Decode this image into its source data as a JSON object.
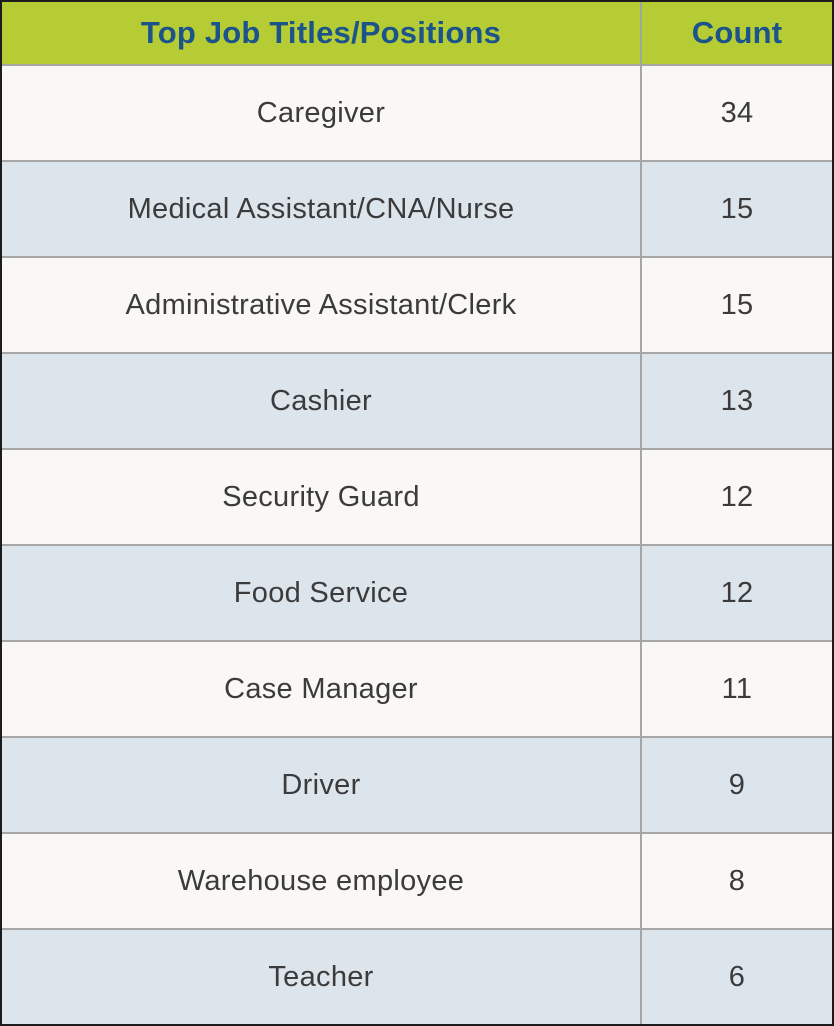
{
  "table": {
    "title_header": "Top Job Titles/Positions",
    "count_header": "Count",
    "rows": [
      {
        "title": "Caregiver",
        "count": "34"
      },
      {
        "title": "Medical Assistant/CNA/Nurse",
        "count": "15"
      },
      {
        "title": "Administrative Assistant/Clerk",
        "count": "15"
      },
      {
        "title": "Cashier",
        "count": "13"
      },
      {
        "title": "Security Guard",
        "count": "12"
      },
      {
        "title": "Food Service",
        "count": "12"
      },
      {
        "title": "Case Manager",
        "count": "11"
      },
      {
        "title": "Driver",
        "count": "9"
      },
      {
        "title": "Warehouse employee",
        "count": "8"
      },
      {
        "title": "Teacher",
        "count": "6"
      }
    ]
  },
  "colors": {
    "header_background": "#b5cc34",
    "header_text": "#1b538b",
    "row_odd_background": "#faf8f4",
    "row_even_background": "#dde5ec",
    "row_text": "#3b3b3b",
    "divider": "#a6a6a6",
    "outer_border": "#1c1c1c"
  },
  "chart_data": {
    "type": "table",
    "title": "Top Job Titles/Positions",
    "columns": [
      "Top Job Titles/Positions",
      "Count"
    ],
    "categories": [
      "Caregiver",
      "Medical Assistant/CNA/Nurse",
      "Administrative Assistant/Clerk",
      "Cashier",
      "Security Guard",
      "Food Service",
      "Case Manager",
      "Driver",
      "Warehouse employee",
      "Teacher"
    ],
    "values": [
      34,
      15,
      15,
      13,
      12,
      12,
      11,
      9,
      8,
      6
    ]
  }
}
